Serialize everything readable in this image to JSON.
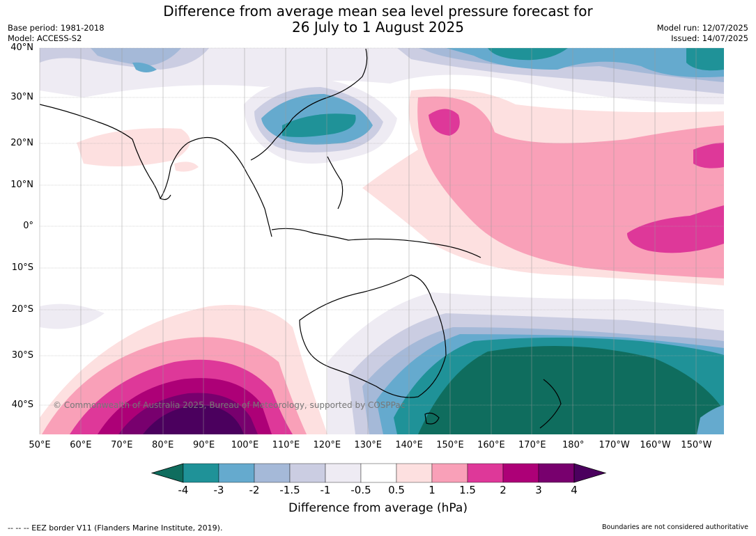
{
  "title_line1": "Difference from average mean sea level pressure forecast for",
  "title_line2": "26 July to 1 August 2025",
  "base_period": "Base period: 1981-2018",
  "model": "Model: ACCESS-S2",
  "model_run": "Model run: 12/07/2025",
  "issued": "Issued: 14/07/2025",
  "copyright": "© Commonwealth of Australia 2025, Bureau of Meteorology, supported by COSPPac",
  "lat_labels": [
    "40°N",
    "30°N",
    "20°N",
    "10°N",
    "0°",
    "10°S",
    "20°S",
    "30°S",
    "40°S"
  ],
  "lon_labels": [
    "50°E",
    "60°E",
    "70°E",
    "80°E",
    "90°E",
    "100°E",
    "110°E",
    "120°E",
    "130°E",
    "140°E",
    "150°E",
    "160°E",
    "170°E",
    "180°",
    "170°W",
    "160°W",
    "150°W"
  ],
  "colorbar": {
    "label": "Difference from average (hPa)",
    "ticks": [
      "-4",
      "-3",
      "-2",
      "-1.5",
      "-1",
      "-0.5",
      "0.5",
      "1",
      "1.5",
      "2",
      "3",
      "4"
    ],
    "colors": [
      "#0f6d5e",
      "#1f9298",
      "#65aace",
      "#a5b9d8",
      "#cbcde2",
      "#eeebf3",
      "#ffffff",
      "#fde0e0",
      "#f9a0b8",
      "#de3899",
      "#ad0077",
      "#78006e",
      "#4b005e"
    ]
  },
  "eez_legend": "--  --  -- EEZ border V11 (Flanders Marine Institute, 2019).",
  "disclaimer": "Boundaries are not considered authoritative"
}
